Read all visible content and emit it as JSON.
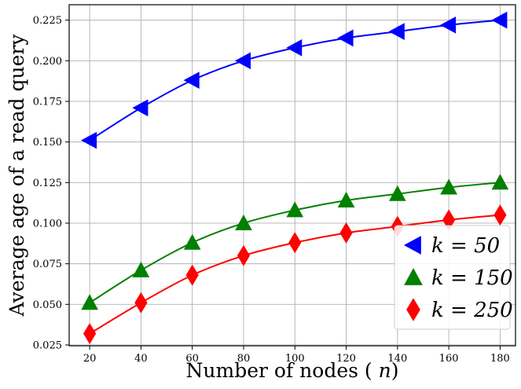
{
  "chart_data": {
    "type": "line",
    "title": "",
    "xlabel": "Number of nodes (n)",
    "ylabel": "Average age of a read query",
    "x": [
      20,
      40,
      60,
      80,
      100,
      120,
      140,
      160,
      180
    ],
    "xticks": [
      "20",
      "40",
      "60",
      "80",
      "100",
      "120",
      "140",
      "160",
      "180"
    ],
    "yticks": [
      "0.025",
      "0.050",
      "0.075",
      "0.100",
      "0.125",
      "0.150",
      "0.175",
      "0.200",
      "0.225"
    ],
    "ytick_values": [
      0.025,
      0.05,
      0.075,
      0.1,
      0.125,
      0.15,
      0.175,
      0.2,
      0.225
    ],
    "xlim": [
      12,
      186
    ],
    "ylim": [
      0.0245,
      0.2345
    ],
    "grid": true,
    "legend_position": "bottom-right",
    "series": [
      {
        "name": "k = 50",
        "color": "#0000ff",
        "marker": "triangle-left",
        "values": [
          0.151,
          0.171,
          0.188,
          0.2,
          0.208,
          0.214,
          0.218,
          0.222,
          0.225
        ]
      },
      {
        "name": "k = 150",
        "color": "#008000",
        "marker": "triangle-up",
        "values": [
          0.051,
          0.071,
          0.088,
          0.1,
          0.108,
          0.114,
          0.118,
          0.122,
          0.125
        ]
      },
      {
        "name": "k = 250",
        "color": "#ff0000",
        "marker": "thin-diamond",
        "values": [
          0.032,
          0.051,
          0.068,
          0.08,
          0.088,
          0.094,
          0.098,
          0.102,
          0.105
        ]
      }
    ]
  }
}
